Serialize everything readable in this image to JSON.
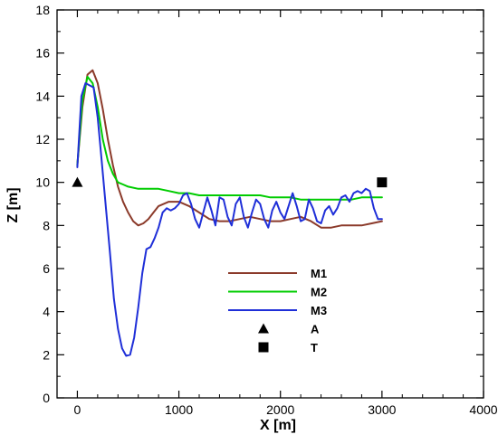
{
  "chart_data": {
    "type": "line",
    "title": "",
    "xlabel": "X [m]",
    "ylabel": "Z [m]",
    "xlim": [
      -200,
      4000
    ],
    "ylim": [
      0,
      18
    ],
    "xticks": [
      0,
      1000,
      2000,
      3000,
      4000
    ],
    "yticks": [
      0,
      2,
      4,
      6,
      8,
      10,
      12,
      14,
      16,
      18
    ],
    "xtick_labels": [
      "0",
      "1000",
      "2000",
      "3000",
      "4000"
    ],
    "ytick_labels": [
      "0",
      "2",
      "4",
      "6",
      "8",
      "10",
      "12",
      "14",
      "16",
      "18"
    ],
    "grid": false,
    "legend_position": "center-right",
    "series": [
      {
        "name": "M1",
        "color": "#8b3a2a",
        "x": [
          0,
          50,
          100,
          150,
          200,
          250,
          300,
          350,
          400,
          450,
          500,
          550,
          600,
          650,
          700,
          750,
          800,
          900,
          1000,
          1100,
          1200,
          1300,
          1400,
          1500,
          1600,
          1700,
          1800,
          1900,
          2000,
          2100,
          2200,
          2300,
          2400,
          2500,
          2600,
          2700,
          2800,
          2900,
          3000
        ],
        "y": [
          10.8,
          13.5,
          15.0,
          15.2,
          14.6,
          13.4,
          12.0,
          10.8,
          9.8,
          9.1,
          8.6,
          8.2,
          8.0,
          8.1,
          8.3,
          8.6,
          8.9,
          9.1,
          9.1,
          8.9,
          8.6,
          8.3,
          8.2,
          8.2,
          8.3,
          8.4,
          8.3,
          8.2,
          8.2,
          8.3,
          8.4,
          8.2,
          7.9,
          7.9,
          8.0,
          8.0,
          8.0,
          8.1,
          8.2
        ]
      },
      {
        "name": "M2",
        "color": "#00cc00",
        "x": [
          0,
          50,
          100,
          150,
          200,
          250,
          300,
          350,
          400,
          450,
          500,
          600,
          700,
          800,
          900,
          1000,
          1100,
          1200,
          1300,
          1400,
          1500,
          1600,
          1700,
          1800,
          1900,
          2000,
          2100,
          2200,
          2300,
          2400,
          2500,
          2600,
          2700,
          2800,
          2900,
          3000
        ],
        "y": [
          10.8,
          13.8,
          14.9,
          14.6,
          13.5,
          12.0,
          11.0,
          10.4,
          10.0,
          9.9,
          9.8,
          9.7,
          9.7,
          9.7,
          9.6,
          9.5,
          9.5,
          9.4,
          9.4,
          9.4,
          9.4,
          9.4,
          9.4,
          9.4,
          9.3,
          9.3,
          9.3,
          9.2,
          9.2,
          9.2,
          9.2,
          9.2,
          9.2,
          9.3,
          9.3,
          9.3
        ]
      },
      {
        "name": "M3",
        "color": "#1f2fd8",
        "x": [
          0,
          40,
          80,
          120,
          160,
          200,
          240,
          280,
          320,
          360,
          400,
          440,
          480,
          520,
          560,
          600,
          640,
          680,
          720,
          760,
          800,
          840,
          880,
          920,
          960,
          1000,
          1040,
          1080,
          1120,
          1160,
          1200,
          1240,
          1280,
          1320,
          1360,
          1400,
          1440,
          1480,
          1520,
          1560,
          1600,
          1640,
          1680,
          1720,
          1760,
          1800,
          1840,
          1880,
          1920,
          1960,
          2000,
          2040,
          2080,
          2120,
          2160,
          2200,
          2240,
          2280,
          2320,
          2360,
          2400,
          2440,
          2480,
          2520,
          2560,
          2600,
          2640,
          2680,
          2720,
          2760,
          2800,
          2840,
          2880,
          2920,
          2960,
          3000
        ],
        "y": [
          10.7,
          14.0,
          14.6,
          14.5,
          14.4,
          13.0,
          11.0,
          8.9,
          6.8,
          4.6,
          3.2,
          2.3,
          1.95,
          2.0,
          2.8,
          4.2,
          5.8,
          6.9,
          7.0,
          7.4,
          7.9,
          8.6,
          8.8,
          8.7,
          8.8,
          9.0,
          9.4,
          9.5,
          9.0,
          8.3,
          7.9,
          8.6,
          9.3,
          8.7,
          8.0,
          9.3,
          9.2,
          8.4,
          8.0,
          9.0,
          9.3,
          8.4,
          7.9,
          8.6,
          9.2,
          9.0,
          8.3,
          7.9,
          8.7,
          9.1,
          8.6,
          8.3,
          8.9,
          9.5,
          8.9,
          8.2,
          8.3,
          9.2,
          8.8,
          8.2,
          8.1,
          8.7,
          8.9,
          8.5,
          8.8,
          9.3,
          9.4,
          9.1,
          9.5,
          9.6,
          9.5,
          9.7,
          9.6,
          8.8,
          8.3,
          8.3
        ]
      }
    ],
    "markers": [
      {
        "name": "A",
        "shape": "triangle",
        "x": 0,
        "y": 10.0,
        "color": "#000000"
      },
      {
        "name": "T",
        "shape": "square",
        "x": 3000,
        "y": 10.0,
        "color": "#000000"
      }
    ]
  }
}
